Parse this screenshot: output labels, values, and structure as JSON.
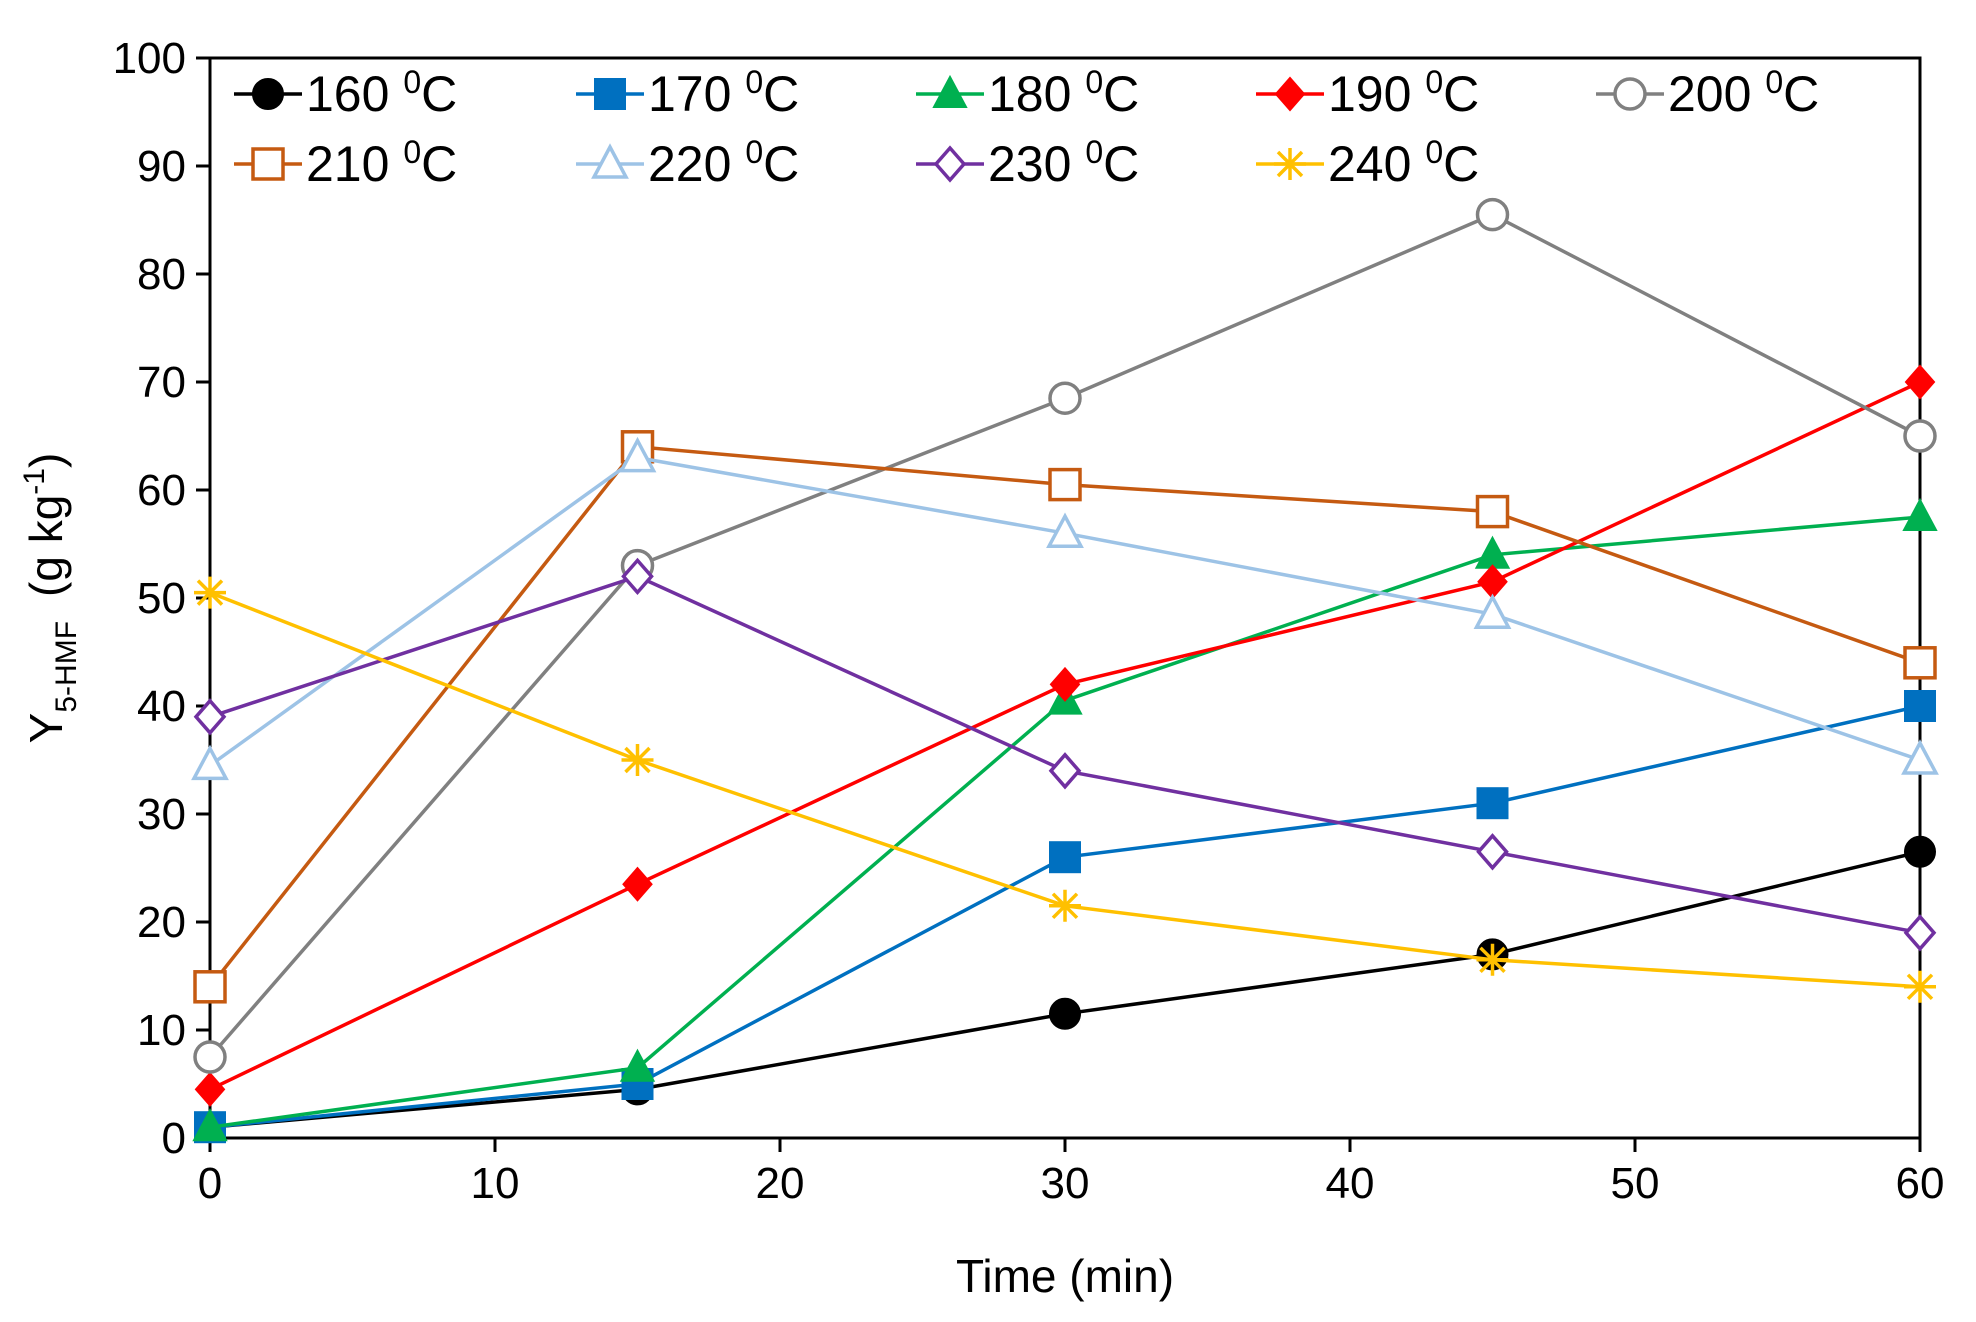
{
  "chart_data": {
    "type": "line",
    "title": "",
    "xlabel": "Time (min)",
    "ylabel": {
      "main": "Y",
      "subscript": "5-HMF",
      "unit_prefix": "(g kg",
      "unit_sup": "-1",
      "unit_suffix": ")"
    },
    "xlim": [
      0,
      60
    ],
    "ylim": [
      0,
      100
    ],
    "x_ticks": [
      0,
      10,
      20,
      30,
      40,
      50,
      60
    ],
    "y_ticks": [
      0,
      10,
      20,
      30,
      40,
      50,
      60,
      70,
      80,
      90,
      100
    ],
    "grid": false,
    "legend_position": "top",
    "x": [
      0,
      15,
      30,
      45,
      60
    ],
    "series": [
      {
        "name": "160",
        "unit": "C",
        "deg": "0",
        "color": "#000000",
        "marker": "circle",
        "fill": "filled",
        "values": [
          1,
          4.5,
          11.5,
          17,
          26.5
        ]
      },
      {
        "name": "170",
        "unit": "C",
        "deg": "0",
        "color": "#0070C0",
        "marker": "square",
        "fill": "filled",
        "values": [
          1,
          5,
          26,
          31,
          40
        ]
      },
      {
        "name": "180",
        "unit": "C",
        "deg": "0",
        "color": "#00B050",
        "marker": "triangle",
        "fill": "filled",
        "values": [
          1,
          6.5,
          40.5,
          54,
          57.5
        ]
      },
      {
        "name": "190",
        "unit": "C",
        "deg": "0",
        "color": "#FF0000",
        "marker": "diamond",
        "fill": "filled",
        "values": [
          4.5,
          23.5,
          42,
          51.5,
          70
        ]
      },
      {
        "name": "200",
        "unit": "C",
        "deg": "0",
        "color": "#808080",
        "marker": "circle",
        "fill": "open",
        "values": [
          7.5,
          53,
          68.5,
          85.5,
          65
        ]
      },
      {
        "name": "210",
        "unit": "C",
        "deg": "0",
        "color": "#C55A11",
        "marker": "square",
        "fill": "open",
        "values": [
          14,
          64,
          60.5,
          58,
          44
        ]
      },
      {
        "name": "220",
        "unit": "C",
        "deg": "0",
        "color": "#9DC3E6",
        "marker": "triangle",
        "fill": "open",
        "values": [
          34.5,
          63,
          56,
          48.5,
          35
        ]
      },
      {
        "name": "230",
        "unit": "C",
        "deg": "0",
        "color": "#7030A0",
        "marker": "diamond",
        "fill": "open",
        "values": [
          39,
          52,
          34,
          26.5,
          19
        ]
      },
      {
        "name": "240",
        "unit": "C",
        "deg": "0",
        "color": "#FFC000",
        "marker": "star",
        "fill": "filled",
        "values": [
          50.5,
          35,
          21.5,
          16.5,
          14
        ]
      }
    ]
  }
}
